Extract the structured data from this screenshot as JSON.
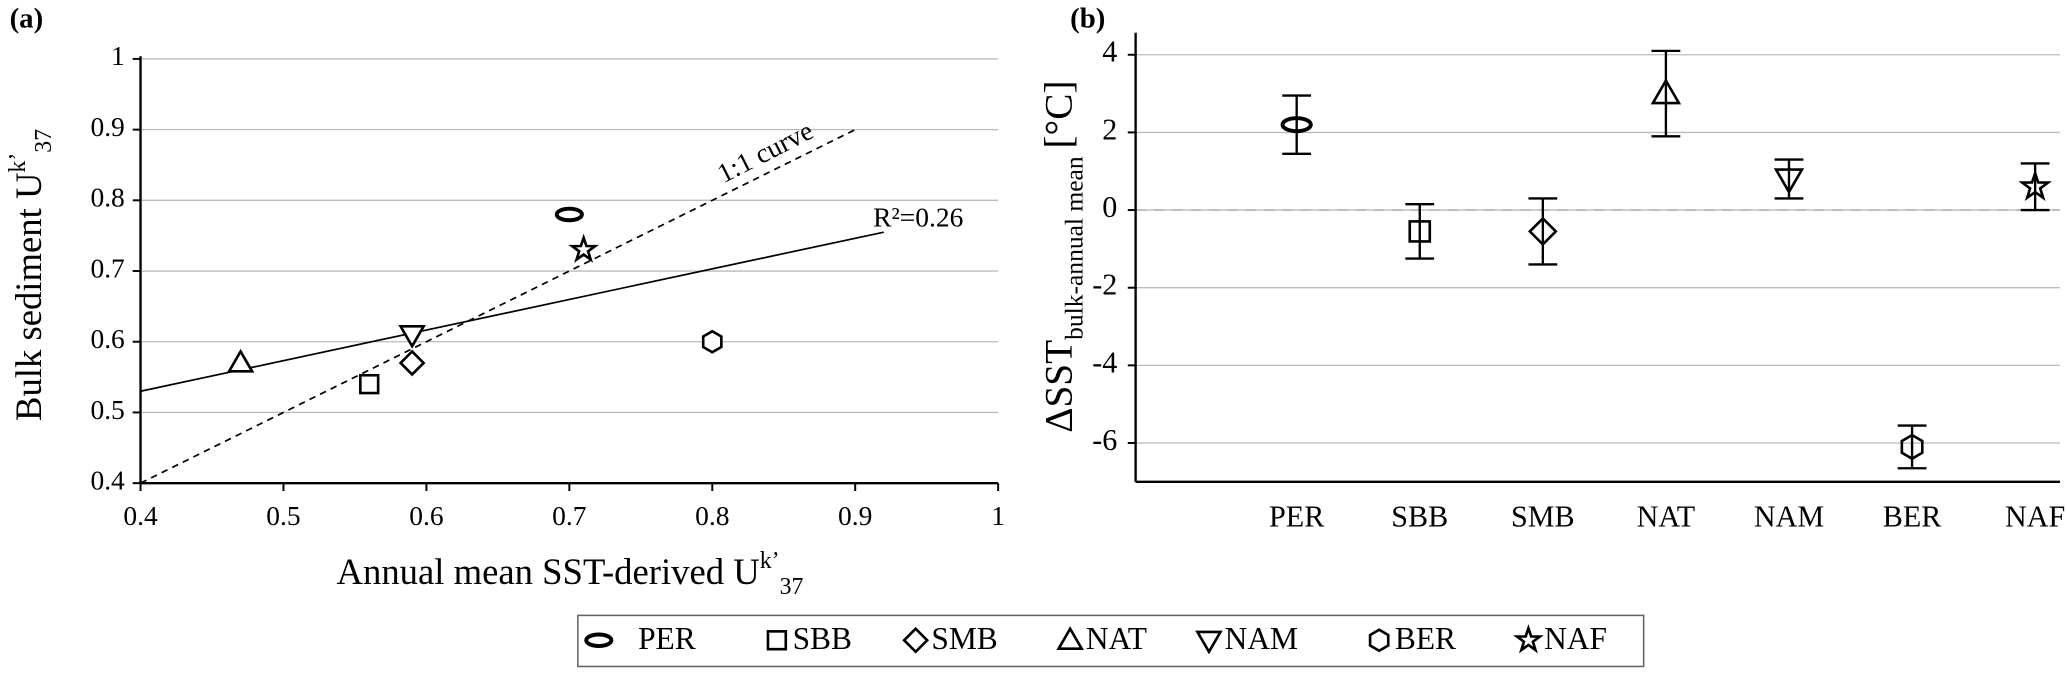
{
  "chart_data": [
    {
      "type": "scatter",
      "panel": "(a)",
      "xlabel": {
        "text": "Annual mean SST-derived U",
        "sup": "k’",
        "sub": "37"
      },
      "ylabel": {
        "text": "Bulk sediment U",
        "sup": "k’",
        "sub": "37"
      },
      "xlim": [
        0.4,
        1
      ],
      "ylim": [
        0.4,
        1
      ],
      "xticks": [
        0.4,
        0.5,
        0.6,
        0.7,
        0.8,
        0.9,
        1
      ],
      "yticks": [
        0.4,
        0.5,
        0.6,
        0.7,
        0.8,
        0.9,
        1
      ],
      "grid": true,
      "color": "#000000",
      "series": [
        {
          "name": "PER",
          "marker": "ellipse",
          "x": [
            0.7
          ],
          "values": [
            0.78
          ]
        },
        {
          "name": "SBB",
          "marker": "square",
          "x": [
            0.56
          ],
          "values": [
            0.54
          ]
        },
        {
          "name": "SMB",
          "marker": "diamond",
          "x": [
            0.59
          ],
          "values": [
            0.57
          ]
        },
        {
          "name": "NAT",
          "marker": "triangle-up",
          "x": [
            0.47
          ],
          "values": [
            0.57
          ]
        },
        {
          "name": "NAM",
          "marker": "triangle-down",
          "x": [
            0.59
          ],
          "values": [
            0.61
          ]
        },
        {
          "name": "BER",
          "marker": "hexagon",
          "x": [
            0.8
          ],
          "values": [
            0.6
          ]
        },
        {
          "name": "NAF",
          "marker": "star",
          "x": [
            0.71
          ],
          "values": [
            0.73
          ]
        }
      ],
      "lines": [
        {
          "style": "dashed",
          "x": [
            0.4,
            0.9
          ],
          "values": [
            0.4,
            0.9
          ]
        },
        {
          "style": "solid",
          "x": [
            0.4,
            0.92
          ],
          "values": [
            0.53,
            0.755
          ]
        }
      ],
      "annotations": [
        "1:1 curve",
        "R²=0.26"
      ]
    },
    {
      "type": "errorbar",
      "panel": "(b)",
      "ylabel": {
        "text": "ΔSST",
        "sub": "bulk-annual mean",
        "unit": "[°C]"
      },
      "categories": [
        "PER",
        "SBB",
        "SMB",
        "NAT",
        "NAM",
        "BER",
        "NAF"
      ],
      "markers": [
        "ellipse",
        "square",
        "diamond",
        "triangle-up",
        "triangle-down",
        "hexagon",
        "star"
      ],
      "values": [
        2.2,
        -0.55,
        -0.55,
        3.0,
        0.8,
        -6.1,
        0.6
      ],
      "errors": [
        0.75,
        0.7,
        0.85,
        1.1,
        0.5,
        0.55,
        0.6
      ],
      "ylim": [
        -7,
        4.5
      ],
      "yticks": [
        -6,
        -4,
        -2,
        0,
        2,
        4
      ],
      "grid": true,
      "zero_line": true,
      "color": "#000000"
    }
  ]
}
